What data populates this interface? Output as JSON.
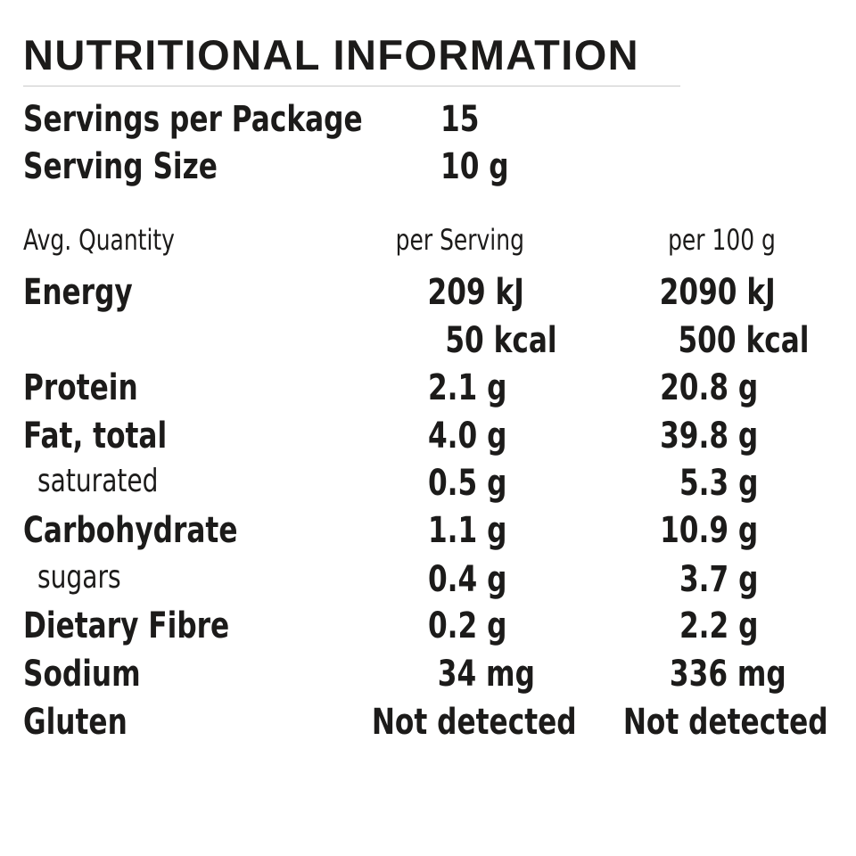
{
  "title": "NUTRITIONAL INFORMATION",
  "servings": {
    "per_package_label": "Servings per Package",
    "per_package_value": "15",
    "size_label": "Serving Size",
    "size_value": "10 g"
  },
  "columns": {
    "quantity": "Avg. Quantity",
    "per_serving": "per Serving",
    "per_100g": "per 100 g"
  },
  "rows": [
    {
      "label": "Energy",
      "per_serving": "209 kJ",
      "per_100g": "2090 kJ"
    },
    {
      "label": "",
      "per_serving": "50 kcal",
      "per_100g": "500 kcal"
    },
    {
      "label": "Protein",
      "per_serving": "2.1 g",
      "per_100g": "20.8 g"
    },
    {
      "label": "Fat, total",
      "per_serving": "4.0 g",
      "per_100g": "39.8 g"
    },
    {
      "label": "saturated",
      "per_serving": "0.5 g",
      "per_100g": "5.3 g"
    },
    {
      "label": "Carbohydrate",
      "per_serving": "1.1 g",
      "per_100g": "10.9 g"
    },
    {
      "label": "sugars",
      "per_serving": "0.4 g",
      "per_100g": "3.7 g"
    },
    {
      "label": "Dietary Fibre",
      "per_serving": "0.2 g",
      "per_100g": "2.2 g"
    },
    {
      "label": "Sodium",
      "per_serving": "34 mg",
      "per_100g": "336 mg"
    },
    {
      "label": "Gluten",
      "per_serving": "Not detected",
      "per_100g": "Not detected"
    }
  ]
}
